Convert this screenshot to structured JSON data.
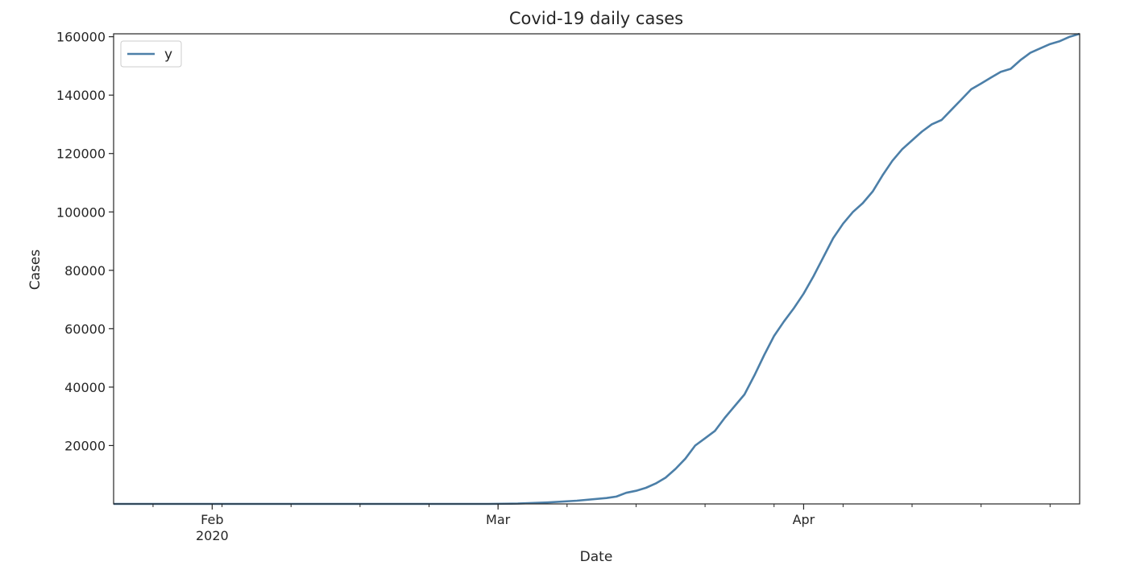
{
  "chart_data": {
    "type": "line",
    "title": "Covid-19 daily cases",
    "xlabel": "Date",
    "ylabel": "Cases",
    "x_range": [
      "2020-01-22",
      "2020-04-24"
    ],
    "ylim": [
      0,
      161000
    ],
    "y_ticks": [
      20000,
      40000,
      60000,
      80000,
      100000,
      120000,
      140000,
      160000
    ],
    "x_major_ticks": [
      {
        "date": "2020-02-01",
        "label": "Feb",
        "sublabel": "2020"
      },
      {
        "date": "2020-03-01",
        "label": "Mar",
        "sublabel": ""
      },
      {
        "date": "2020-04-01",
        "label": "Apr",
        "sublabel": ""
      }
    ],
    "grid": false,
    "legend": {
      "position": "top-left",
      "entries": [
        "y"
      ]
    },
    "series": [
      {
        "name": "y",
        "color": "#4c7fa8",
        "points": [
          [
            "2020-01-22",
            0
          ],
          [
            "2020-02-01",
            0
          ],
          [
            "2020-02-15",
            0
          ],
          [
            "2020-02-29",
            0
          ],
          [
            "2020-03-03",
            100
          ],
          [
            "2020-03-06",
            500
          ],
          [
            "2020-03-09",
            1100
          ],
          [
            "2020-03-12",
            2000
          ],
          [
            "2020-03-13",
            2500
          ],
          [
            "2020-03-14",
            3800
          ],
          [
            "2020-03-15",
            4500
          ],
          [
            "2020-03-16",
            5500
          ],
          [
            "2020-03-17",
            7000
          ],
          [
            "2020-03-18",
            9000
          ],
          [
            "2020-03-19",
            12000
          ],
          [
            "2020-03-20",
            15500
          ],
          [
            "2020-03-21",
            20000
          ],
          [
            "2020-03-22",
            22500
          ],
          [
            "2020-03-23",
            25000
          ],
          [
            "2020-03-24",
            29500
          ],
          [
            "2020-03-25",
            33500
          ],
          [
            "2020-03-26",
            37500
          ],
          [
            "2020-03-27",
            44000
          ],
          [
            "2020-03-28",
            51000
          ],
          [
            "2020-03-29",
            57500
          ],
          [
            "2020-03-30",
            62500
          ],
          [
            "2020-03-31",
            67000
          ],
          [
            "2020-04-01",
            72000
          ],
          [
            "2020-04-02",
            78000
          ],
          [
            "2020-04-03",
            84500
          ],
          [
            "2020-04-04",
            91000
          ],
          [
            "2020-04-05",
            96000
          ],
          [
            "2020-04-06",
            100000
          ],
          [
            "2020-04-07",
            103000
          ],
          [
            "2020-04-08",
            107000
          ],
          [
            "2020-04-09",
            112500
          ],
          [
            "2020-04-10",
            117500
          ],
          [
            "2020-04-11",
            121500
          ],
          [
            "2020-04-12",
            124500
          ],
          [
            "2020-04-13",
            127500
          ],
          [
            "2020-04-14",
            130000
          ],
          [
            "2020-04-15",
            131500
          ],
          [
            "2020-04-16",
            135000
          ],
          [
            "2020-04-17",
            138500
          ],
          [
            "2020-04-18",
            142000
          ],
          [
            "2020-04-19",
            144000
          ],
          [
            "2020-04-20",
            146000
          ],
          [
            "2020-04-21",
            148000
          ],
          [
            "2020-04-22",
            149000
          ],
          [
            "2020-04-23",
            152000
          ],
          [
            "2020-04-24",
            154500
          ],
          [
            "2020-04-25",
            156000
          ],
          [
            "2020-04-26",
            157500
          ],
          [
            "2020-04-27",
            158500
          ],
          [
            "2020-04-28",
            160000
          ],
          [
            "2020-04-29",
            161000
          ]
        ]
      }
    ]
  }
}
